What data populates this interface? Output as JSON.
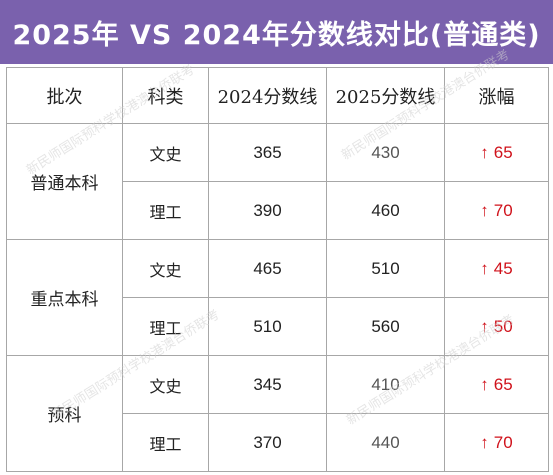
{
  "title": "2025年 VS 2024年分数线对比(普通类)",
  "watermark": "新民师国际预科学校港澳台侨联考",
  "headers": [
    "批次",
    "科类",
    "2024分数线",
    "2025分数线",
    "涨幅"
  ],
  "arrow_glyph": "↑",
  "groups": [
    {
      "batch": "普通本科",
      "rows": [
        {
          "subject": "文史",
          "y2024": "365",
          "y2025": "430",
          "increase": "65"
        },
        {
          "subject": "理工",
          "y2024": "390",
          "y2025": "460",
          "increase": "70"
        }
      ]
    },
    {
      "batch": "重点本科",
      "rows": [
        {
          "subject": "文史",
          "y2024": "465",
          "y2025": "510",
          "increase": "45"
        },
        {
          "subject": "理工",
          "y2024": "510",
          "y2025": "560",
          "increase": "50"
        }
      ]
    },
    {
      "batch": "预科",
      "rows": [
        {
          "subject": "文史",
          "y2024": "345",
          "y2025": "410",
          "increase": "65"
        },
        {
          "subject": "理工",
          "y2024": "370",
          "y2025": "440",
          "increase": "70"
        }
      ]
    }
  ],
  "colors": {
    "title_bg": "#7a61ad",
    "title_text": "#ffffff",
    "increase": "#d0121b",
    "border": "#a7a7a7"
  }
}
